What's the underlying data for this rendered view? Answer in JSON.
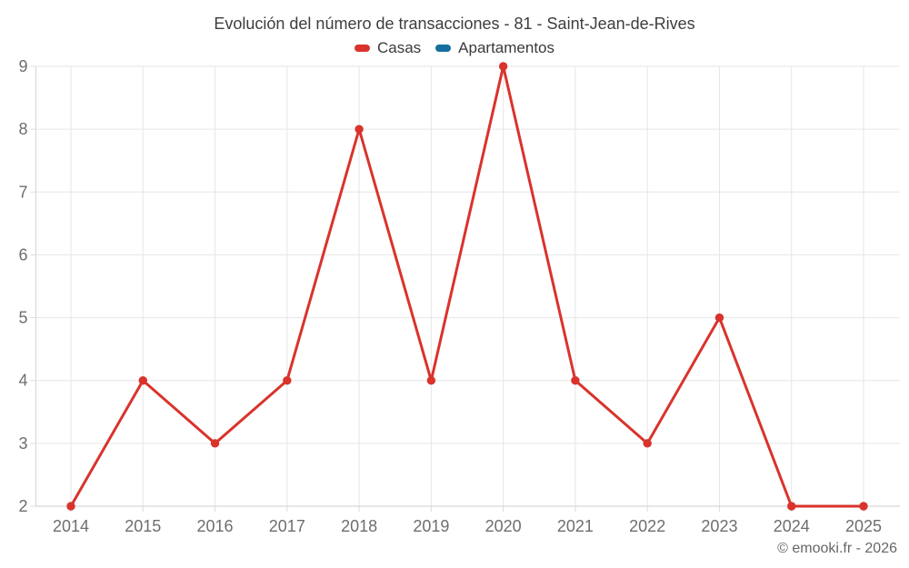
{
  "chart": {
    "title": "Evolución del número de transacciones - 81 - Saint-Jean-de-Rives",
    "copyright": "© emooki.fr - 2026"
  },
  "chart_data": {
    "type": "line",
    "title": "Evolución del número de transacciones - 81 - Saint-Jean-de-Rives",
    "categories": [
      "2014",
      "2015",
      "2016",
      "2017",
      "2018",
      "2019",
      "2020",
      "2021",
      "2022",
      "2023",
      "2024",
      "2025"
    ],
    "series": [
      {
        "name": "Casas",
        "color": "#d9332c",
        "values": [
          2,
          4,
          3,
          4,
          8,
          4,
          9,
          4,
          3,
          5,
          2,
          2
        ]
      },
      {
        "name": "Apartamentos",
        "color": "#166f9e",
        "values": []
      }
    ],
    "xlabel": "",
    "ylabel": "",
    "ylim": [
      2,
      9
    ],
    "yticks": [
      2,
      3,
      4,
      5,
      6,
      7,
      8,
      9
    ],
    "grid": true,
    "legend_position": "top-center",
    "marker_radius": 4.7,
    "line_width": 3,
    "colors": {
      "gridline": "#e6e6e6",
      "x_axis_line": "#cccccc",
      "y_axis_line": "#d6d6d6",
      "tick": "#dcdcdc",
      "axis_label": "#6e6e6e",
      "title_text": "#3d3d3d",
      "legend_text": "#3a3a3a",
      "copyright_text": "#666666",
      "background": "#ffffff"
    }
  }
}
